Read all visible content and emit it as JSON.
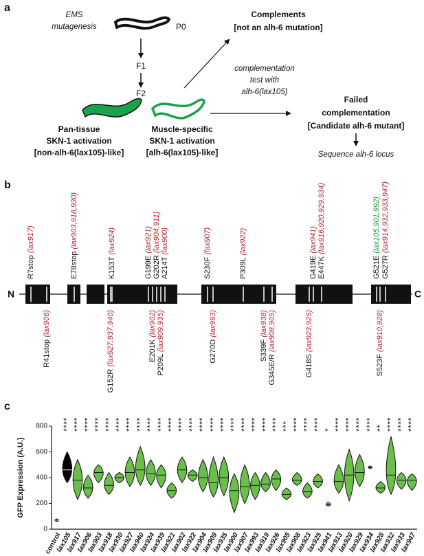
{
  "panel_a": {
    "label": "a",
    "ems": [
      "EMS",
      "mutagenesis"
    ],
    "p0": "P0",
    "f1": "F1",
    "f2": "F2",
    "complements": [
      "Complements",
      "[not an alh-6 mutation]"
    ],
    "complementation_test": [
      "complementation",
      "test with",
      "alh-6(lax105)"
    ],
    "pan_tissue": [
      "Pan-tissue",
      "SKN-1 activation",
      "[non-alh-6(lax105)-like]"
    ],
    "muscle_specific": [
      "Muscle-specific",
      "SKN-1 activation",
      "[alh-6(lax105)-like]"
    ],
    "failed": [
      "Failed",
      "complementation",
      "[Candidate alh-6 mutant]"
    ],
    "sequence": "Sequence alh-6 locus"
  },
  "panel_b": {
    "label": "b",
    "n_terminus": "N",
    "c_terminus": "C",
    "top": [
      {
        "mutation": "R7stop",
        "alleles": "(lax917)"
      },
      {
        "mutation": "E78stop",
        "alleles": "(lax903,918,930)"
      },
      {
        "mutation": "K153T",
        "alleles": "(lax924)"
      },
      {
        "mutation": "G199E",
        "alleles": "(lax921)"
      },
      {
        "mutation": "G202R",
        "alleles": "(lax904,911)"
      },
      {
        "mutation": "A214T",
        "alleles": "(lax900)"
      },
      {
        "mutation": "S230F",
        "alleles": "(lax907)"
      },
      {
        "mutation": "P309L",
        "alleles": "(lax922)"
      },
      {
        "mutation": "G419E",
        "alleles": "(lax941)"
      },
      {
        "mutation": "E447K",
        "alleles": "(lax916,920,929,934)"
      },
      {
        "mutation": "G521E",
        "alleles": "(lax105,901,992)",
        "color": "#1a9a3a"
      },
      {
        "mutation": "G527R",
        "alleles": "(lax914,932,933,947)"
      }
    ],
    "bottom": [
      {
        "mutation": "R41stop",
        "alleles": "(lax906)"
      },
      {
        "mutation": "G152R",
        "alleles": "(lax927,937,940)"
      },
      {
        "mutation": "E201K",
        "alleles": "(lax902)"
      },
      {
        "mutation": "P209L",
        "alleles": "(lax909,935)"
      },
      {
        "mutation": "G270D",
        "alleles": "(lax993)"
      },
      {
        "mutation": "S339F",
        "alleles": "(lax938)"
      },
      {
        "mutation": "G345E/R",
        "alleles": "(lax908,905)"
      },
      {
        "mutation": "G418S",
        "alleles": "(lax923,925)"
      },
      {
        "mutation": "S523F",
        "alleles": "(lax910,928)"
      }
    ],
    "allele_color": "#b5202e"
  },
  "chart_data": {
    "type": "violin",
    "label": "c",
    "ylabel": "GFP Expression (A.U.)",
    "categories": [
      "control",
      "lax105",
      "lax917",
      "lax906",
      "lax903",
      "lax918",
      "lax930",
      "lax927",
      "lax940",
      "lax924",
      "lax939",
      "lax921",
      "lax902",
      "lax922",
      "lax904",
      "lax909",
      "lax935",
      "lax900",
      "lax907",
      "lax993",
      "lax919",
      "lax926",
      "lax905",
      "lax908",
      "lax923",
      "lax925",
      "lax941",
      "lax913",
      "lax920",
      "lax929",
      "lax934",
      "lax928",
      "lax932",
      "lax933",
      "lax947"
    ],
    "median": [
      70,
      460,
      380,
      320,
      440,
      340,
      400,
      440,
      460,
      430,
      420,
      300,
      460,
      420,
      400,
      360,
      400,
      300,
      330,
      340,
      350,
      390,
      270,
      380,
      290,
      370,
      190,
      370,
      420,
      440,
      480,
      320,
      420,
      380,
      380
    ],
    "min": [
      60,
      360,
      230,
      240,
      360,
      270,
      360,
      330,
      340,
      340,
      320,
      240,
      360,
      370,
      290,
      250,
      260,
      130,
      200,
      230,
      290,
      300,
      230,
      340,
      240,
      320,
      180,
      280,
      220,
      330,
      470,
      280,
      270,
      310,
      300
    ],
    "max": [
      80,
      600,
      540,
      420,
      500,
      440,
      440,
      560,
      640,
      540,
      500,
      360,
      560,
      460,
      540,
      560,
      560,
      430,
      500,
      440,
      440,
      460,
      320,
      440,
      360,
      430,
      210,
      500,
      620,
      580,
      490,
      370,
      720,
      440,
      430
    ],
    "significance": [
      null,
      "****",
      "****",
      "****",
      "****",
      "****",
      "****",
      "****",
      "****",
      "****",
      "****",
      "****",
      "****",
      "****",
      "****",
      "****",
      "****",
      "****",
      "****",
      "****",
      "****",
      "****",
      "***",
      "****",
      "****",
      "****",
      "*",
      "****",
      "****",
      "****",
      "****",
      "**",
      "****",
      "****",
      "****"
    ],
    "colors": [
      "#000000",
      "#000000",
      "#6abf4b",
      "#6abf4b",
      "#6abf4b",
      "#6abf4b",
      "#6abf4b",
      "#6abf4b",
      "#6abf4b",
      "#6abf4b",
      "#6abf4b",
      "#6abf4b",
      "#6abf4b",
      "#6abf4b",
      "#6abf4b",
      "#6abf4b",
      "#6abf4b",
      "#6abf4b",
      "#6abf4b",
      "#6abf4b",
      "#6abf4b",
      "#6abf4b",
      "#6abf4b",
      "#6abf4b",
      "#6abf4b",
      "#6abf4b",
      "#6abf4b",
      "#6abf4b",
      "#6abf4b",
      "#6abf4b",
      "#6abf4b",
      "#6abf4b",
      "#6abf4b",
      "#6abf4b",
      "#6abf4b"
    ],
    "ylim": [
      0,
      800
    ],
    "yticks": [
      0,
      200,
      400,
      600,
      800
    ]
  }
}
